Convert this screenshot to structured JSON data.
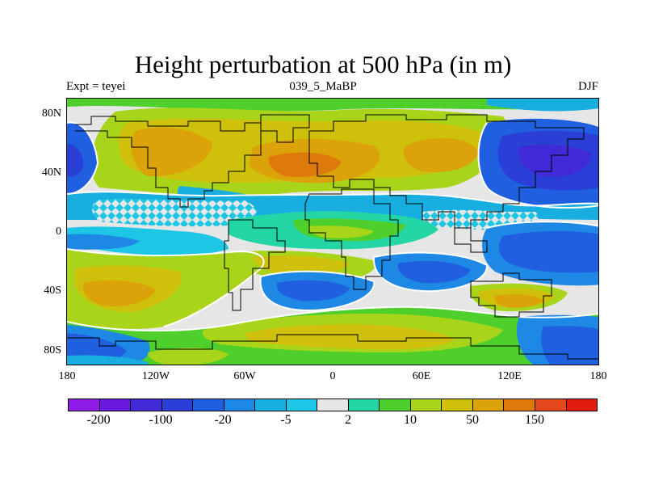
{
  "title": "Height perturbation at 500 hPa (in m)",
  "subtitle_left": "Expt = teyei",
  "subtitle_center": "039_5_MaBP",
  "subtitle_right": "DJF",
  "map": {
    "projection": "cylindrical-equidistant",
    "lat_ticks": [
      "80N",
      "40N",
      "0",
      "40S",
      "80S"
    ],
    "lon_ticks": [
      "180",
      "120W",
      "60W",
      "0",
      "60E",
      "120E",
      "180"
    ],
    "features": [
      "filled-contours",
      "continent-outlines",
      "contour-lines"
    ]
  },
  "colorbar": {
    "colors": [
      "#8c1ce6",
      "#6a1ae0",
      "#4029d6",
      "#2a3fd6",
      "#1f5fe0",
      "#1e88e5",
      "#19aee0",
      "#1ec6e6",
      "#e6e6e6",
      "#24d6a6",
      "#4fcf2c",
      "#a8d419",
      "#cfc00c",
      "#dba20a",
      "#de7a0c",
      "#e4471b",
      "#e11d10"
    ],
    "labels": [
      "-200",
      "-100",
      "-20",
      "-5",
      "2",
      "10",
      "50",
      "150"
    ]
  }
}
